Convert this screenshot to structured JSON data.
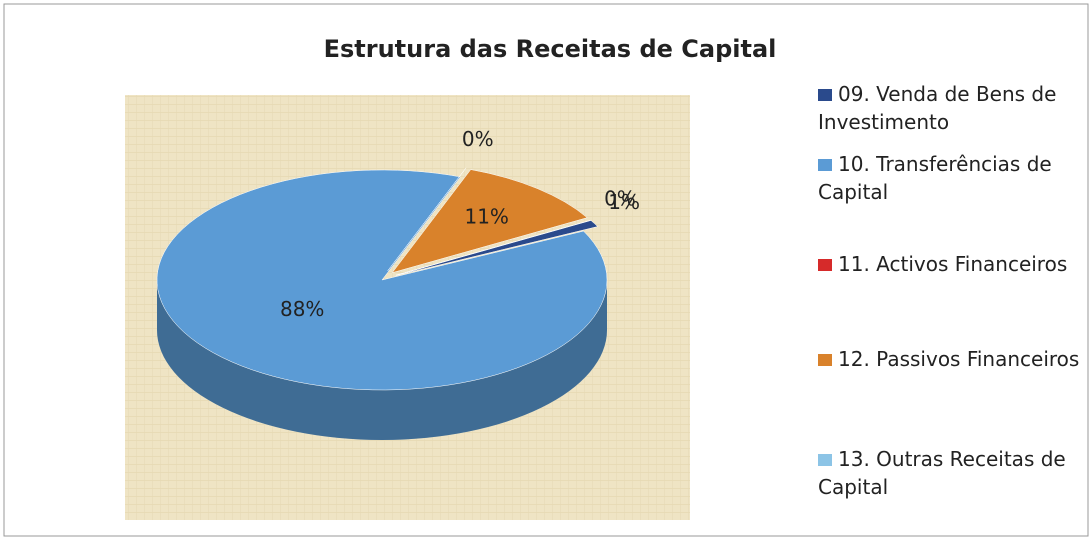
{
  "chart_data": {
    "type": "pie",
    "title": "Estrutura das Receitas de Capital",
    "categories": [
      "09. Venda de Bens de Investimento",
      "10. Transferências de Capital",
      "11. Activos Financeiros",
      "12. Passivos Financeiros",
      "13. Outras Receitas de Capital"
    ],
    "values": [
      1,
      88,
      0,
      11,
      0
    ],
    "value_labels": [
      "1%",
      "88%",
      "0%",
      "11%",
      "0%"
    ],
    "colors": [
      "#2a4a8c",
      "#5b9bd5",
      "#d62a2a",
      "#d9822b",
      "#8cc4e6"
    ],
    "legend": "right"
  }
}
